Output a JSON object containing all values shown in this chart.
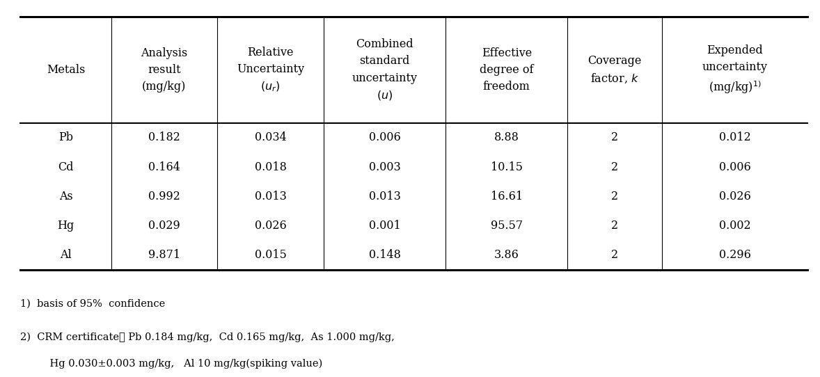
{
  "col_headers": [
    "Metals",
    "Analysis\nresult\n(mg/kg)",
    "Relative\nUncertainty\n$(u_r)$",
    "Combined\nstandard\nuncertainty\n$(u)$",
    "Effective\ndegree of\nfreedom",
    "Coverage\nfactor, $k$",
    "Expended\nuncertainty\n(mg/kg)$^{1)}$"
  ],
  "rows": [
    [
      "Pb",
      "0.182",
      "0.034",
      "0.006",
      "8.88",
      "2",
      "0.012"
    ],
    [
      "Cd",
      "0.164",
      "0.018",
      "0.003",
      "10.15",
      "2",
      "0.006"
    ],
    [
      "As",
      "0.992",
      "0.013",
      "0.013",
      "16.61",
      "2",
      "0.026"
    ],
    [
      "Hg",
      "0.029",
      "0.026",
      "0.001",
      "95.57",
      "2",
      "0.002"
    ],
    [
      "Al",
      "9.871",
      "0.015",
      "0.148",
      "3.86",
      "2",
      "0.296"
    ]
  ],
  "footnote1": "1)  basis of 95%  confidence",
  "footnote2": "2)  CRM certificate： Pb 0.184 mg/kg,  Cd 0.165 mg/kg,  As 1.000 mg/kg,",
  "footnote3": "    Hg 0.030±0.003 mg/kg,   Al 10 mg/kg(spiking value)",
  "bg_color": "white",
  "text_color": "black",
  "font_size": 11.5,
  "header_font_size": 11.5
}
